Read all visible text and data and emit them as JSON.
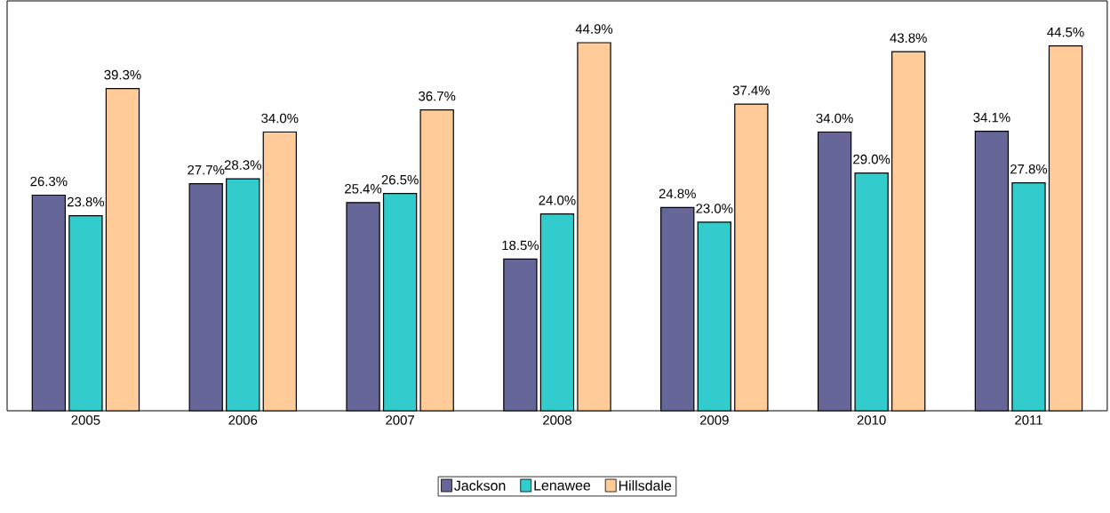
{
  "chart_data": {
    "type": "bar",
    "categories": [
      "2005",
      "2006",
      "2007",
      "2008",
      "2009",
      "2010",
      "2011"
    ],
    "ylim": [
      0,
      50
    ],
    "legend": "bottom",
    "grid": false,
    "tick_labels": "x",
    "series": [
      {
        "name": "Jackson",
        "color": "#666699",
        "values": [
          26.3,
          27.7,
          25.4,
          18.5,
          24.8,
          34.0,
          34.1
        ],
        "value_labels": [
          "26.3%",
          "27.7%",
          "25.4%",
          "18.5%",
          "24.8%",
          "34.0%",
          "34.1%"
        ]
      },
      {
        "name": "Lenawee",
        "color": "#33cccc",
        "values": [
          23.8,
          28.3,
          26.5,
          24.0,
          23.0,
          29.0,
          27.8
        ],
        "value_labels": [
          "23.8%",
          "28.3%",
          "26.5%",
          "24.0%",
          "23.0%",
          "29.0%",
          "27.8%"
        ]
      },
      {
        "name": "Hillsdale",
        "color": "#ffcc99",
        "values": [
          39.3,
          34.0,
          36.7,
          44.9,
          37.4,
          43.8,
          44.5
        ],
        "value_labels": [
          "39.3%",
          "34.0%",
          "36.7%",
          "44.9%",
          "37.4%",
          "43.8%",
          "44.5%"
        ]
      }
    ]
  }
}
